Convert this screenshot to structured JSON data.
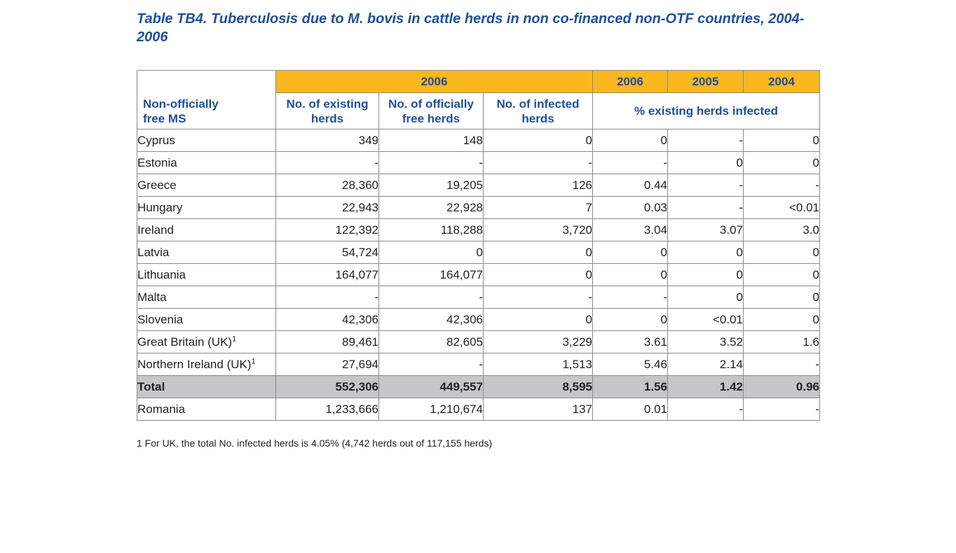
{
  "title": "Table TB4. Tuberculosis due to M. bovis in cattle herds in non co-financed non-OTF countries, 2004-2006",
  "header": {
    "year_group": "2006",
    "year_2006": "2006",
    "year_2005": "2005",
    "year_2004": "2004",
    "corner_line1": "Non-officially",
    "corner_line2": "free MS",
    "col_existing": "No. of existing herds",
    "col_free": "No. of officially free herds",
    "col_infected": "No. of infected herds",
    "col_percent": "% existing herds infected"
  },
  "rows": [
    {
      "country": "Cyprus",
      "sup": "",
      "existing": "349",
      "free": "148",
      "infected": "0",
      "p2006": "0",
      "p2005": "-",
      "p2004": "0"
    },
    {
      "country": "Estonia",
      "sup": "",
      "existing": "-",
      "free": "-",
      "infected": "-",
      "p2006": "-",
      "p2005": "0",
      "p2004": "0"
    },
    {
      "country": "Greece",
      "sup": "",
      "existing": "28,360",
      "free": "19,205",
      "infected": "126",
      "p2006": "0.44",
      "p2005": "-",
      "p2004": "-"
    },
    {
      "country": "Hungary",
      "sup": "",
      "existing": "22,943",
      "free": "22,928",
      "infected": "7",
      "p2006": "0.03",
      "p2005": "-",
      "p2004": "<0.01"
    },
    {
      "country": "Ireland",
      "sup": "",
      "existing": "122,392",
      "free": "118,288",
      "infected": "3,720",
      "p2006": "3.04",
      "p2005": "3.07",
      "p2004": "3.0"
    },
    {
      "country": "Latvia",
      "sup": "",
      "existing": "54,724",
      "free": "0",
      "infected": "0",
      "p2006": "0",
      "p2005": "0",
      "p2004": "0"
    },
    {
      "country": "Lithuania",
      "sup": "",
      "existing": "164,077",
      "free": "164,077",
      "infected": "0",
      "p2006": "0",
      "p2005": "0",
      "p2004": "0"
    },
    {
      "country": "Malta",
      "sup": "",
      "existing": "-",
      "free": "-",
      "infected": "-",
      "p2006": "-",
      "p2005": "0",
      "p2004": "0"
    },
    {
      "country": "Slovenia",
      "sup": "",
      "existing": "42,306",
      "free": "42,306",
      "infected": "0",
      "p2006": "0",
      "p2005": "<0.01",
      "p2004": "0"
    },
    {
      "country": "Great Britain (UK)",
      "sup": "1",
      "existing": "89,461",
      "free": "82,605",
      "infected": "3,229",
      "p2006": "3.61",
      "p2005": "3.52",
      "p2004": "1.6"
    },
    {
      "country": "Northern Ireland (UK)",
      "sup": "1",
      "existing": "27,694",
      "free": "-",
      "infected": "1,513",
      "p2006": "5.46",
      "p2005": "2.14",
      "p2004": "-"
    }
  ],
  "total": {
    "country": "Total",
    "existing": "552,306",
    "free": "449,557",
    "infected": "8,595",
    "p2006": "1.56",
    "p2005": "1.42",
    "p2004": "0.96"
  },
  "extra": {
    "country": "Romania",
    "existing": "1,233,666",
    "free": "1,210,674",
    "infected": "137",
    "p2006": "0.01",
    "p2005": "-",
    "p2004": "-"
  },
  "footnote": "1 For UK, the total No. infected herds is 4.05% (4,742 herds out of 117,155 herds)",
  "colors": {
    "header_yellow": "#fbb81d",
    "title_blue": "#1f4e9c",
    "total_gray": "#c5c6c8"
  }
}
